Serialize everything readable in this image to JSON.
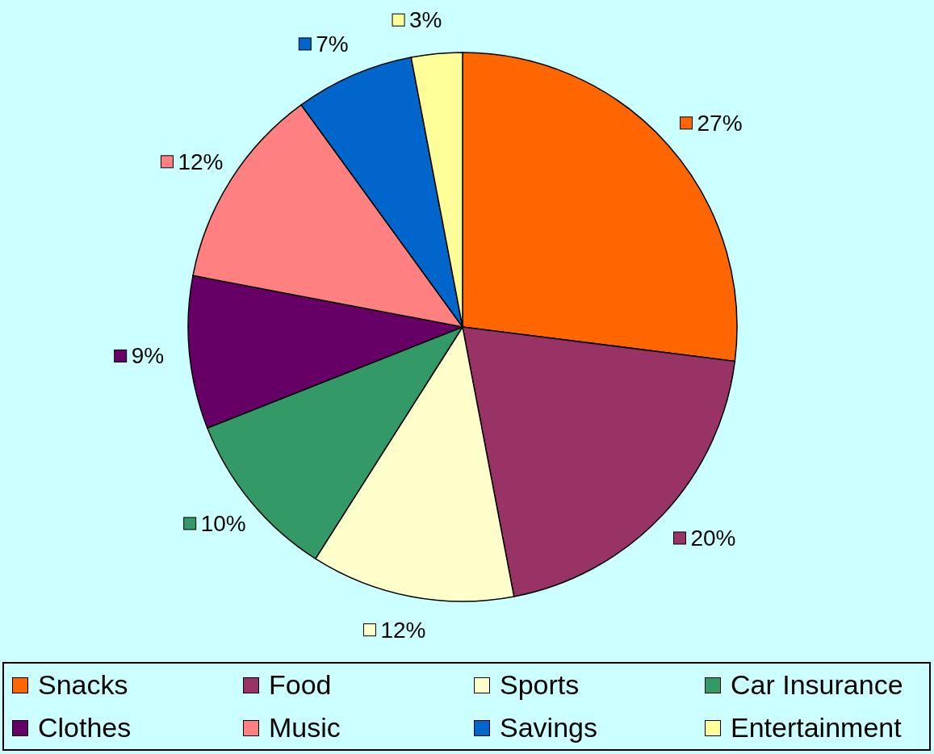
{
  "chart_data": {
    "type": "pie",
    "categories": [
      "Snacks",
      "Food",
      "Sports",
      "Car Insurance",
      "Clothes",
      "Music",
      "Savings",
      "Entertainment"
    ],
    "values": [
      27,
      20,
      12,
      10,
      9,
      12,
      7,
      3
    ],
    "colors": [
      "#ff6600",
      "#993366",
      "#ffffcc",
      "#339966",
      "#660066",
      "#ff8080",
      "#0066cc",
      "#ffff99"
    ],
    "value_labels": [
      "27%",
      "20%",
      "12%",
      "10%",
      "9%",
      "12%",
      "7%",
      "3%"
    ],
    "legend": "bottom"
  }
}
